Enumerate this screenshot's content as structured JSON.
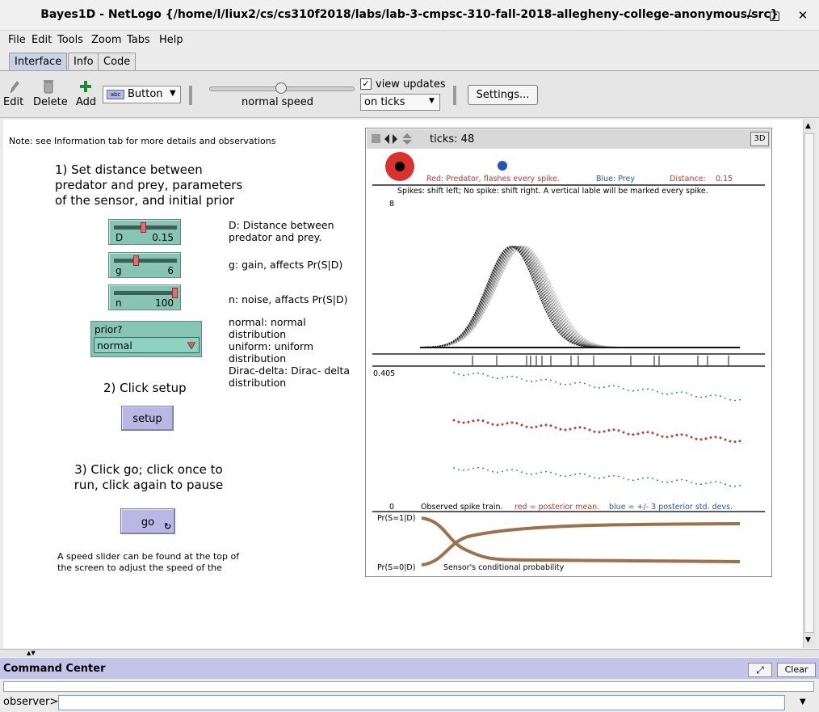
{
  "window": {
    "title": "Bayes1D - NetLogo {/home/l/liux2/cs/cs310f2018/labs/lab-3-cmpsc-310-fall-2018-allegheny-college-anonymous/src}",
    "minimize": "–",
    "maximize": "□",
    "close": "✕"
  },
  "menu": [
    "File",
    "Edit",
    "Tools",
    "Zoom",
    "Tabs",
    "Help"
  ],
  "tabs": [
    "Interface",
    "Info",
    "Code"
  ],
  "toolbar": {
    "edit": "Edit",
    "delete": "Delete",
    "add": "Add",
    "widget_type": "Button",
    "widget_type_icon": "abc",
    "speed_label": "normal speed",
    "speed_value": 0.5,
    "view_updates_label": "view updates",
    "view_updates_checked": true,
    "update_mode": "on ticks",
    "settings": "Settings..."
  },
  "interface": {
    "note": "Note:  see Information tab for more details and observations",
    "step1": "1)  Set distance between predator and prey, parameters of the sensor, and initial prior",
    "sliders": [
      {
        "name": "D",
        "value": "0.15",
        "fraction": 0.5,
        "desc": "D: Distance between predator and prey."
      },
      {
        "name": "g",
        "value": "6",
        "fraction": 0.35,
        "desc": "g: gain, affects Pr(S|D)"
      },
      {
        "name": "n",
        "value": "100",
        "fraction": 1.0,
        "desc": "n: noise, affacts Pr(S|D)"
      }
    ],
    "chooser": {
      "label": "prior?",
      "value": "normal"
    },
    "chooser_desc": "normal: normal distribution\nuniform: uniform distribution\nDirac-delta: Dirac- delta distribution",
    "step2": "2)  Click setup",
    "setup_button": "setup",
    "step3": "3)  Click go; click once to run, click again to pause",
    "go_button": "go",
    "speed_note": "A speed slider can be found at the top of the screen to adjust the speed of the"
  },
  "view": {
    "ticks_label": "ticks: 48",
    "btn_3d": "3D",
    "legend_red": "Red: Predator, flashes every spike.",
    "legend_blue": "Blue: Prey",
    "legend_distance_label": "Distance:",
    "legend_distance_value": "0.15",
    "spikes_note": "Spikes: shift left; No spike: shift right. A vertical lable will be marked every spike.",
    "posterior_ymax": "8",
    "trace_ymax": "0.405",
    "trace_ymin": "0",
    "trace_caption_black": "Observed spike train.",
    "trace_caption_red": "red = posterior mean.",
    "trace_caption_blue": "blue = +/- 3 posterior std. devs.",
    "prob_label_top": "Pr(S=1|D)",
    "prob_label_bottom": "Pr(S=0|D)",
    "prob_caption": "Sensor's conditional probability",
    "colors": {
      "predator": "#d9312b",
      "prey": "#2255bb",
      "sensor_curve": "#a0704a"
    }
  },
  "command_center": {
    "title": "Command Center",
    "clear": "Clear",
    "prompt": "observer>"
  }
}
